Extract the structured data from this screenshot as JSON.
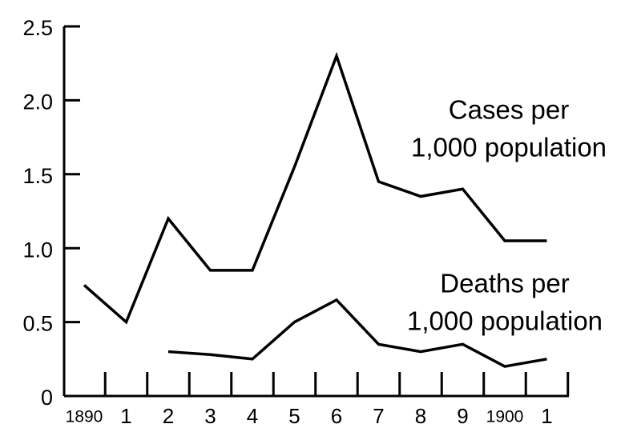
{
  "chart_data": {
    "type": "line",
    "categories": [
      "1890",
      "1",
      "2",
      "3",
      "4",
      "5",
      "6",
      "7",
      "8",
      "9",
      "1900",
      "1"
    ],
    "series": [
      {
        "name": [
          "Cases per",
          "1,000 population"
        ],
        "color": "#000000",
        "values": [
          0.75,
          0.5,
          1.2,
          0.85,
          0.85,
          1.55,
          2.3,
          1.45,
          1.35,
          1.4,
          1.05,
          1.05
        ]
      },
      {
        "name": [
          "Deaths per",
          "1,000 population"
        ],
        "color": "#000000",
        "values": [
          null,
          null,
          0.3,
          0.28,
          0.25,
          0.5,
          0.65,
          0.35,
          0.3,
          0.35,
          0.2,
          0.25
        ]
      }
    ],
    "ylim": [
      0,
      2.5
    ],
    "yticks": [
      0,
      0.5,
      {
        "value": 1,
        "label": "1.0"
      },
      1.5,
      {
        "value": 2,
        "label": "2.0"
      },
      2.5
    ]
  }
}
